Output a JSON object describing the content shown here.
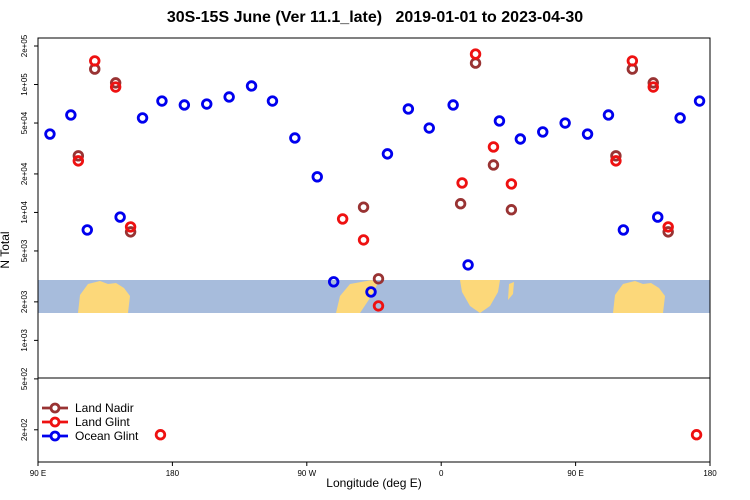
{
  "chart_data": {
    "type": "scatter",
    "title": "30S-15S June (Ver 11.1_late)   2019-01-01 to 2023-04-30",
    "x_label": "Longitude (deg E)",
    "y_label": "N Total",
    "log_y": true,
    "legend": "bottom left",
    "xlim": [
      90,
      540
    ],
    "ylim": [
      112,
      231000
    ],
    "xticks": [
      {
        "value": 90,
        "label": "90 E"
      },
      180,
      {
        "value": 270,
        "label": "90 W"
      },
      {
        "value": 360,
        "label": "0"
      },
      {
        "value": 450,
        "label": "90 E"
      },
      {
        "value": 540,
        "label": "180"
      }
    ],
    "yticks": [
      {
        "value": 200,
        "label": "2e+02"
      },
      {
        "value": 500,
        "label": "5e+02"
      },
      {
        "value": 1000,
        "label": "1e+03"
      },
      {
        "value": 2000,
        "label": "2e+03"
      },
      {
        "value": 5000,
        "label": "5e+03"
      },
      {
        "value": 10000,
        "label": "1e+04"
      },
      {
        "value": 20000,
        "label": "2e+04"
      },
      {
        "value": 50000,
        "label": "5e+04"
      },
      {
        "value": 100000,
        "label": "1e+05"
      },
      {
        "value": 200000,
        "label": "2e+05"
      }
    ],
    "series": [
      {
        "name": "Land Nadir",
        "color": "#993333",
        "x": [
          117,
          128,
          142,
          152,
          308,
          318,
          373,
          383,
          395,
          407,
          477,
          488,
          502,
          512
        ],
        "values": [
          27700,
          132000,
          103000,
          7050,
          11000,
          3030,
          11700,
          147000,
          23500,
          10500,
          27700,
          132000,
          103000,
          7050
        ]
      },
      {
        "name": "Land Glint",
        "color": "#ee1111",
        "x": [
          117,
          128,
          142,
          152,
          172,
          294,
          308,
          318,
          374,
          383,
          395,
          407,
          477,
          488,
          502,
          512,
          531
        ],
        "values": [
          25300,
          153000,
          95600,
          7710,
          183,
          8900,
          6100,
          1860,
          17000,
          173000,
          32500,
          16700,
          25300,
          153000,
          95600,
          7710,
          183
        ]
      },
      {
        "name": "Ocean Glint",
        "color": "#0000ee",
        "x": [
          98,
          112,
          123,
          145,
          160,
          173,
          188,
          203,
          218,
          233,
          247,
          262,
          277,
          288,
          313,
          324,
          338,
          352,
          368,
          378,
          399,
          413,
          428,
          443,
          458,
          472,
          482,
          505,
          520,
          533
        ],
        "values": [
          41000,
          57800,
          7300,
          9200,
          54800,
          74300,
          69200,
          70400,
          79900,
          97400,
          74300,
          38200,
          19000,
          2870,
          2390,
          28700,
          64400,
          45700,
          69200,
          3890,
          51900,
          37500,
          42600,
          50000,
          41000,
          57800,
          7300,
          9200,
          54800,
          74300
        ]
      }
    ]
  }
}
